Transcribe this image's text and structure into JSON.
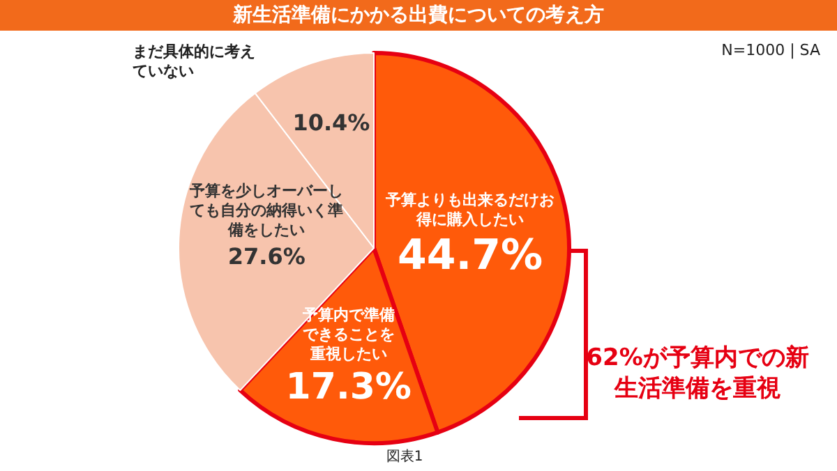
{
  "chart_data": {
    "type": "pie",
    "title": "新生活準備にかかる出費についての考え方",
    "categories": [
      "予算よりも出来るだけお得に購入したい",
      "予算内で準備できることを重視したい",
      "予算を少しオーバーしても自分の納得いく準備をしたい",
      "まだ具体的に考えていない"
    ],
    "values": [
      44.7,
      17.3,
      27.6,
      10.4
    ],
    "colors": [
      "#ff5a0a",
      "#ff5a0a",
      "#f7c4ad",
      "#f7c4ad"
    ],
    "value_labels": [
      "44.7%",
      "17.3%",
      "27.6%",
      "10.4%"
    ],
    "legend": false,
    "annotations": [
      "N=1000 | SA",
      "62%が予算内での新生活準備を重視",
      "図表1"
    ]
  }
}
